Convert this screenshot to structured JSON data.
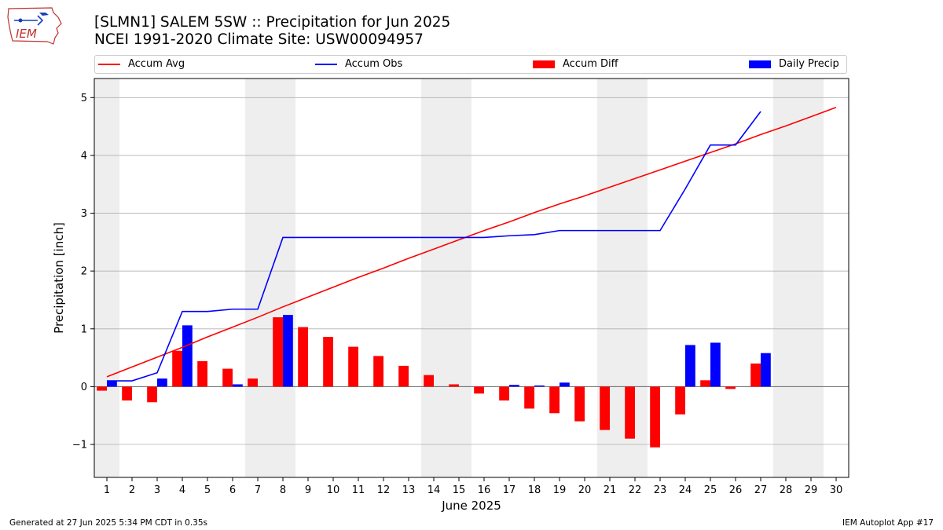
{
  "header": {
    "title_line1": "[SLMN1] SALEM 5SW :: Precipitation for Jun 2025",
    "title_line2": "NCEI 1991-2020 Climate Site: USW00094957",
    "logo_text": "IEM"
  },
  "legend": {
    "items": [
      {
        "label": "Accum Avg",
        "color": "#ff0000",
        "kind": "line"
      },
      {
        "label": "Accum Obs",
        "color": "#0000ff",
        "kind": "line"
      },
      {
        "label": "Accum Diff",
        "color": "#ff0000",
        "kind": "patch"
      },
      {
        "label": "Daily Precip",
        "color": "#0000ff",
        "kind": "patch"
      }
    ]
  },
  "footer": {
    "generated": "Generated at 27 Jun 2025 5:34 PM CDT in 0.35s",
    "app": "IEM Autoplot App #17"
  },
  "chart_data": {
    "type": "bar",
    "title": "[SLMN1] SALEM 5SW :: Precipitation for Jun 2025",
    "subtitle": "NCEI 1991-2020 Climate Site: USW00094957",
    "xlabel": "June 2025",
    "ylabel": "Precipitation [inch]",
    "xlim": [
      0.5,
      30.5
    ],
    "ylim": [
      -1.57,
      5.33
    ],
    "yticks": [
      -1,
      0,
      1,
      2,
      3,
      4,
      5
    ],
    "yticklabels": [
      "−1",
      "0",
      "1",
      "2",
      "3",
      "4",
      "5"
    ],
    "categories": [
      1,
      2,
      3,
      4,
      5,
      6,
      7,
      8,
      9,
      10,
      11,
      12,
      13,
      14,
      15,
      16,
      17,
      18,
      19,
      20,
      21,
      22,
      23,
      24,
      25,
      26,
      27,
      28,
      29,
      30
    ],
    "grid": true,
    "legend_position": "top",
    "weekend_bands": [
      [
        0.5,
        1.5
      ],
      [
        6.5,
        8.5
      ],
      [
        13.5,
        15.5
      ],
      [
        20.5,
        22.5
      ],
      [
        27.5,
        29.5
      ]
    ],
    "series": [
      {
        "name": "Accum Avg",
        "kind": "line",
        "color": "#ff0000",
        "x": [
          1,
          2,
          3,
          4,
          5,
          6,
          7,
          8,
          9,
          10,
          11,
          12,
          13,
          14,
          15,
          16,
          17,
          18,
          19,
          20,
          21,
          22,
          23,
          24,
          25,
          26,
          27,
          28,
          29,
          30
        ],
        "values": [
          0.17,
          0.34,
          0.51,
          0.68,
          0.86,
          1.03,
          1.2,
          1.38,
          1.55,
          1.72,
          1.89,
          2.05,
          2.22,
          2.38,
          2.54,
          2.7,
          2.85,
          3.01,
          3.16,
          3.3,
          3.45,
          3.6,
          3.75,
          3.9,
          4.05,
          4.2,
          4.36,
          4.51,
          4.67,
          4.83
        ]
      },
      {
        "name": "Accum Obs",
        "kind": "line",
        "color": "#0000ff",
        "x": [
          1,
          2,
          3,
          4,
          5,
          6,
          7,
          8,
          9,
          10,
          11,
          12,
          13,
          14,
          15,
          16,
          17,
          18,
          19,
          20,
          21,
          22,
          23,
          24,
          25,
          26,
          27
        ],
        "values": [
          0.1,
          0.1,
          0.24,
          1.3,
          1.3,
          1.34,
          1.34,
          2.58,
          2.58,
          2.58,
          2.58,
          2.58,
          2.58,
          2.58,
          2.58,
          2.58,
          2.61,
          2.63,
          2.7,
          2.7,
          2.7,
          2.7,
          2.7,
          3.42,
          4.18,
          4.18,
          4.76
        ]
      },
      {
        "name": "Accum Diff",
        "kind": "bar",
        "color": "#ff0000",
        "x": [
          1,
          2,
          3,
          4,
          5,
          6,
          7,
          8,
          9,
          10,
          11,
          12,
          13,
          14,
          15,
          16,
          17,
          18,
          19,
          20,
          21,
          22,
          23,
          24,
          25,
          26,
          27
        ],
        "values": [
          -0.07,
          -0.24,
          -0.27,
          0.62,
          0.44,
          0.31,
          0.14,
          1.2,
          1.03,
          0.86,
          0.69,
          0.53,
          0.36,
          0.2,
          0.04,
          -0.12,
          -0.24,
          -0.38,
          -0.46,
          -0.6,
          -0.75,
          -0.9,
          -1.05,
          -0.48,
          0.11,
          -0.04,
          0.4
        ]
      },
      {
        "name": "Daily Precip",
        "kind": "bar",
        "color": "#0000ff",
        "x": [
          1,
          2,
          3,
          4,
          5,
          6,
          7,
          8,
          9,
          10,
          11,
          12,
          13,
          14,
          15,
          16,
          17,
          18,
          19,
          20,
          21,
          22,
          23,
          24,
          25,
          26,
          27
        ],
        "values": [
          0.1,
          0,
          0.14,
          1.06,
          0,
          0.04,
          0,
          1.24,
          0,
          0,
          0,
          0,
          0,
          0,
          0,
          0,
          0.03,
          0.02,
          0.07,
          0,
          0,
          0,
          0,
          0.72,
          0.76,
          0,
          0.58
        ]
      }
    ]
  }
}
